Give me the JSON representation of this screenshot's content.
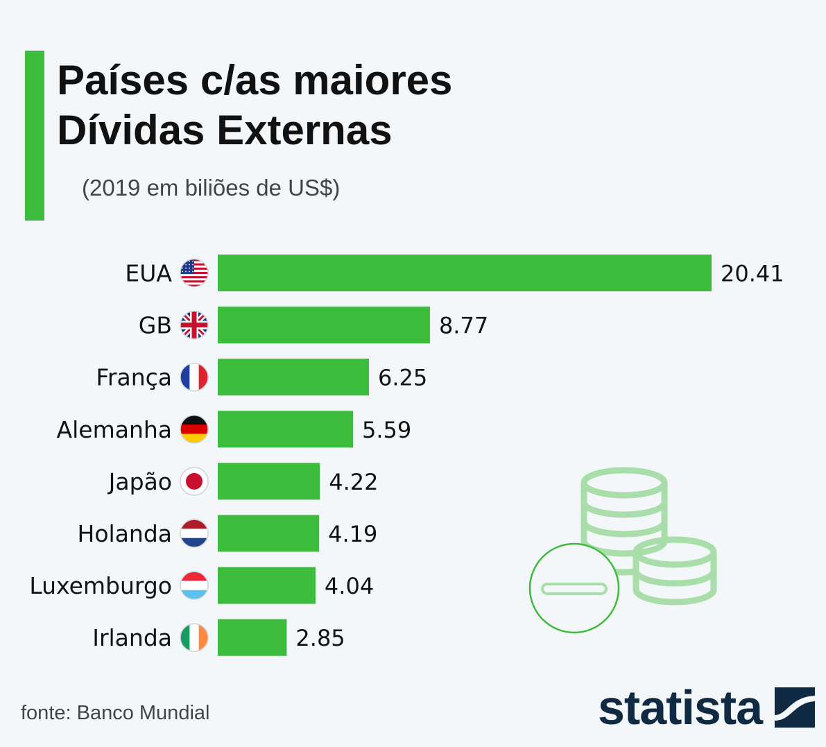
{
  "header": {
    "title_line1": "Países c/as maiores",
    "title_line2": "Dívidas Externas",
    "subtitle": "(2019 em biliões de US$)"
  },
  "footer": {
    "source": "fonte: Banco Mundial",
    "brand": "statista"
  },
  "colors": {
    "bar": "#3dbb3d",
    "accent": "#3dbb3d",
    "background": "#f4f7fa",
    "brand": "#0f2a42",
    "illustration": "#a9deaa"
  },
  "chart_data": {
    "type": "bar",
    "orientation": "horizontal",
    "categories": [
      "EUA",
      "GB",
      "França",
      "Alemanha",
      "Japão",
      "Holanda",
      "Luxemburgo",
      "Irlanda"
    ],
    "flags": [
      "us-flag-icon",
      "uk-flag-icon",
      "france-flag-icon",
      "germany-flag-icon",
      "japan-flag-icon",
      "netherlands-flag-icon",
      "luxembourg-flag-icon",
      "ireland-flag-icon"
    ],
    "values": [
      20.41,
      8.77,
      6.25,
      5.59,
      4.22,
      4.19,
      4.04,
      2.85
    ],
    "value_labels": [
      "20.41",
      "8.77",
      "6.25",
      "5.59",
      "4.22",
      "4.19",
      "4.04",
      "2.85"
    ],
    "title": "Países c/as maiores Dívidas Externas",
    "subtitle": "(2019 em biliões de US$)",
    "xlabel": "",
    "ylabel": "",
    "grid": false,
    "legend": "none"
  }
}
